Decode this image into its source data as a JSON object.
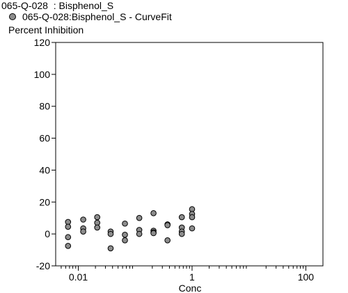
{
  "chart_data": {
    "type": "scatter",
    "title": "065-Q-028  : Bisphenol_S",
    "legend": [
      {
        "label": "065-Q-028:Bisphenol_S - CurveFit",
        "color": "#8c8c8c"
      }
    ],
    "xlabel": "Conc",
    "ylabel": "Percent  Inhibition",
    "x_scale": "log",
    "xlim": [
      0.004,
      200
    ],
    "ylim": [
      -20,
      120
    ],
    "x_ticks": [
      {
        "v": 0.01,
        "label": "0.01"
      },
      {
        "v": 1,
        "label": "1"
      },
      {
        "v": 100,
        "label": "100"
      }
    ],
    "y_ticks": [
      -20,
      0,
      20,
      40,
      60,
      80,
      100,
      120
    ],
    "grid": false,
    "series": [
      {
        "name": "065-Q-028:Bisphenol_S - CurveFit",
        "color": "#8c8c8c",
        "points": [
          [
            0.0066,
            7.5
          ],
          [
            0.0066,
            4.5
          ],
          [
            0.0066,
            -2
          ],
          [
            0.0066,
            -7.5
          ],
          [
            0.0122,
            9
          ],
          [
            0.0122,
            3.5
          ],
          [
            0.0122,
            1.5
          ],
          [
            0.0215,
            10.5
          ],
          [
            0.0215,
            7
          ],
          [
            0.0215,
            4
          ],
          [
            0.037,
            1.5
          ],
          [
            0.037,
            0
          ],
          [
            0.037,
            -9
          ],
          [
            0.066,
            6.5
          ],
          [
            0.066,
            -0.5
          ],
          [
            0.066,
            -4
          ],
          [
            0.118,
            10
          ],
          [
            0.118,
            2.5
          ],
          [
            0.118,
            0
          ],
          [
            0.21,
            13
          ],
          [
            0.21,
            2
          ],
          [
            0.21,
            1
          ],
          [
            0.21,
            0.5
          ],
          [
            0.37,
            6
          ],
          [
            0.37,
            5.5
          ],
          [
            0.37,
            -4
          ],
          [
            0.66,
            10.5
          ],
          [
            0.66,
            4
          ],
          [
            0.66,
            1.5
          ],
          [
            0.66,
            0
          ],
          [
            1.0,
            15.5
          ],
          [
            1.0,
            12.5
          ],
          [
            1.0,
            10.5
          ],
          [
            1.0,
            3.5
          ]
        ]
      }
    ]
  }
}
